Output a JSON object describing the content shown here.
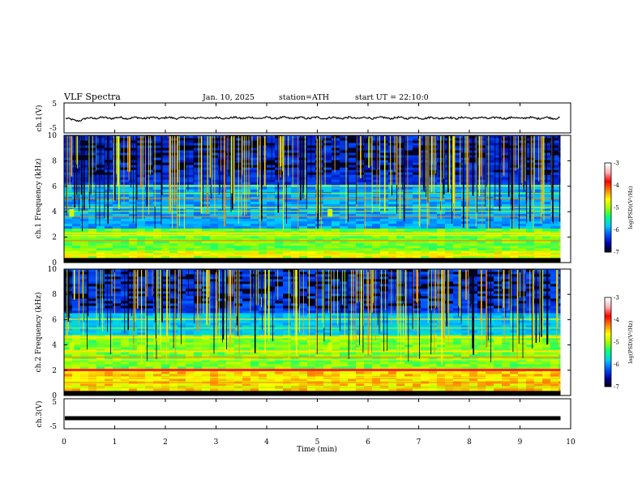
{
  "header": {
    "title": "VLF Spectra",
    "date": "Jan. 10, 2025",
    "station": "station=ATH",
    "start": "start UT = 22:10:0"
  },
  "chart_data": [
    {
      "type": "line",
      "panel": "ch1-waveform",
      "ylabel": "ch.1(V)",
      "ylim": [
        -5,
        5
      ],
      "yticks": [
        "5",
        "-5"
      ],
      "description_values": {
        "mean": 0,
        "amplitude_approx": 0.5
      }
    },
    {
      "type": "heatmap",
      "panel": "ch1-spectrogram",
      "ylabel": "ch.1 Frequency (kHz)",
      "ylim": [
        0,
        10
      ],
      "yticks": [
        "0",
        "2",
        "4",
        "6",
        "8",
        "10"
      ],
      "colorbar": {
        "label": "log(PSD)(V²/Hz)",
        "ticks": [
          "-3",
          "-4",
          "-5",
          "-6",
          "-7"
        ],
        "range": [
          -7,
          -3
        ]
      }
    },
    {
      "type": "heatmap",
      "panel": "ch2-spectrogram",
      "ylabel": "ch.2 Frequency (kHz)",
      "ylim": [
        0,
        10
      ],
      "yticks": [
        "0",
        "2",
        "4",
        "6",
        "8",
        "10"
      ],
      "colorbar": {
        "label": "log(PSD)(V²/Hz)",
        "ticks": [
          "-3",
          "-4",
          "-5",
          "-6",
          "-7"
        ],
        "range": [
          -7,
          -3
        ]
      }
    },
    {
      "type": "line",
      "panel": "ch3-waveform",
      "ylabel": "ch.3(V)",
      "ylim": [
        -5,
        5
      ],
      "yticks": [
        "5",
        "-5"
      ],
      "xlabel": "Time (min)",
      "xlim": [
        0,
        10
      ],
      "xticks": [
        "0",
        "1",
        "2",
        "3",
        "4",
        "5",
        "6",
        "7",
        "8",
        "9",
        "10"
      ],
      "description_values": {
        "mean": -1.5,
        "data_end_min": 9.8
      }
    }
  ],
  "colors": {
    "scale": [
      "#000000",
      "#0000a0",
      "#0050ff",
      "#00c8ff",
      "#00ff80",
      "#a0ff00",
      "#ffff00",
      "#ff8000",
      "#ff0000",
      "#ffb0b0",
      "#ffffff"
    ]
  }
}
